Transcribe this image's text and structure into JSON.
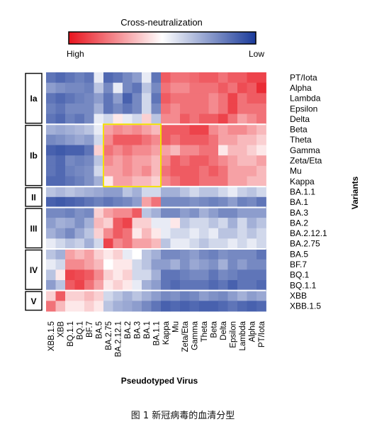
{
  "chart_data": {
    "type": "heatmap",
    "title": "Cross-neutralization",
    "legend": {
      "low_label": "High",
      "high_label": "Low",
      "colors": [
        "#e8141e",
        "#ffffff",
        "#1a3a9a"
      ],
      "scale": "0 = high neutralization (red), 1 = low (blue)"
    },
    "xlabel": "Pseudotyped Virus",
    "ylabel": "Variants",
    "x": [
      "XBB.1.5",
      "XBB",
      "BQ.1.1",
      "BQ.1",
      "BF.7",
      "BA.5",
      "BA.2.75",
      "BA.2.12.1",
      "BA.2",
      "BA.3",
      "BA.1",
      "BA.1.1",
      "Kappa",
      "Mu",
      "Zeta/Eta",
      "Gamma",
      "Theta",
      "Beta",
      "Delta",
      "Epsilon",
      "Lambda",
      "Alpha",
      "PT/Iota"
    ],
    "y": [
      "PT/Iota",
      "Alpha",
      "Lambda",
      "Epsilon",
      "Delta",
      "Beta",
      "Theta",
      "Gamma",
      "Zeta/Eta",
      "Mu",
      "Kappa",
      "BA.1.1",
      "BA.1",
      "BA.3",
      "BA.2",
      "BA.2.12.1",
      "BA.2.75",
      "BA.5",
      "BF.7",
      "BQ.1",
      "BQ.1.1",
      "XBB",
      "XBB.1.5"
    ],
    "groups": [
      {
        "name": "Ia",
        "rows": [
          0,
          4
        ]
      },
      {
        "name": "Ib",
        "rows": [
          5,
          10
        ]
      },
      {
        "name": "II",
        "rows": [
          11,
          12
        ]
      },
      {
        "name": "III",
        "rows": [
          13,
          16
        ]
      },
      {
        "name": "IV",
        "rows": [
          17,
          20
        ]
      },
      {
        "name": "V",
        "rows": [
          21,
          22
        ]
      }
    ],
    "highlight": {
      "rows": [
        5,
        10
      ],
      "cols": [
        6,
        11
      ],
      "color": "#f2e000"
    },
    "values": [
      [
        0.85,
        0.88,
        0.85,
        0.82,
        0.85,
        0.55,
        0.88,
        0.85,
        0.8,
        0.75,
        0.55,
        0.85,
        0.15,
        0.2,
        0.2,
        0.18,
        0.15,
        0.15,
        0.2,
        0.15,
        0.15,
        0.1,
        0.1
      ],
      [
        0.75,
        0.78,
        0.8,
        0.8,
        0.82,
        0.65,
        0.8,
        0.55,
        0.8,
        0.85,
        0.65,
        0.8,
        0.2,
        0.25,
        0.25,
        0.2,
        0.2,
        0.2,
        0.15,
        0.2,
        0.12,
        0.15,
        0.05
      ],
      [
        0.85,
        0.88,
        0.85,
        0.82,
        0.8,
        0.75,
        0.85,
        0.75,
        0.9,
        0.8,
        0.6,
        0.85,
        0.15,
        0.2,
        0.2,
        0.2,
        0.2,
        0.25,
        0.2,
        0.1,
        0.2,
        0.15,
        0.15
      ],
      [
        0.82,
        0.85,
        0.8,
        0.8,
        0.8,
        0.7,
        0.85,
        0.8,
        0.85,
        0.8,
        0.6,
        0.8,
        0.2,
        0.25,
        0.2,
        0.2,
        0.2,
        0.25,
        0.2,
        0.1,
        0.2,
        0.2,
        0.2
      ],
      [
        0.85,
        0.88,
        0.82,
        0.85,
        0.8,
        0.55,
        0.6,
        0.45,
        0.55,
        0.6,
        0.4,
        0.65,
        0.25,
        0.25,
        0.15,
        0.2,
        0.15,
        0.15,
        0.1,
        0.2,
        0.3,
        0.25,
        0.2
      ],
      [
        0.7,
        0.72,
        0.7,
        0.68,
        0.65,
        0.55,
        0.3,
        0.25,
        0.28,
        0.25,
        0.3,
        0.35,
        0.15,
        0.15,
        0.15,
        0.1,
        0.1,
        0.25,
        0.3,
        0.25,
        0.25,
        0.3,
        0.35
      ],
      [
        0.8,
        0.78,
        0.75,
        0.72,
        0.75,
        0.6,
        0.25,
        0.15,
        0.15,
        0.15,
        0.2,
        0.25,
        0.15,
        0.2,
        0.15,
        0.15,
        0.15,
        0.2,
        0.3,
        0.3,
        0.35,
        0.35,
        0.4
      ],
      [
        0.9,
        0.92,
        0.9,
        0.9,
        0.85,
        0.4,
        0.2,
        0.25,
        0.2,
        0.25,
        0.25,
        0.3,
        0.3,
        0.35,
        0.25,
        0.25,
        0.2,
        0.2,
        0.45,
        0.35,
        0.35,
        0.4,
        0.45
      ],
      [
        0.85,
        0.88,
        0.8,
        0.82,
        0.8,
        0.65,
        0.25,
        0.3,
        0.25,
        0.3,
        0.3,
        0.35,
        0.25,
        0.15,
        0.2,
        0.15,
        0.15,
        0.2,
        0.25,
        0.3,
        0.35,
        0.35,
        0.3
      ],
      [
        0.85,
        0.88,
        0.82,
        0.8,
        0.78,
        0.6,
        0.3,
        0.3,
        0.25,
        0.3,
        0.25,
        0.35,
        0.2,
        0.15,
        0.15,
        0.15,
        0.2,
        0.15,
        0.2,
        0.3,
        0.3,
        0.3,
        0.35
      ],
      [
        0.88,
        0.88,
        0.85,
        0.82,
        0.78,
        0.7,
        0.45,
        0.3,
        0.3,
        0.35,
        0.35,
        0.4,
        0.25,
        0.2,
        0.15,
        0.15,
        0.2,
        0.2,
        0.2,
        0.3,
        0.3,
        0.35,
        0.35
      ],
      [
        0.65,
        0.68,
        0.65,
        0.68,
        0.7,
        0.72,
        0.75,
        0.75,
        0.65,
        0.7,
        0.6,
        0.6,
        0.7,
        0.7,
        0.65,
        0.6,
        0.65,
        0.65,
        0.6,
        0.55,
        0.62,
        0.65,
        0.6
      ],
      [
        0.9,
        0.92,
        0.9,
        0.88,
        0.85,
        0.82,
        0.85,
        0.82,
        0.8,
        0.75,
        0.3,
        0.2,
        0.8,
        0.8,
        0.8,
        0.78,
        0.8,
        0.82,
        0.8,
        0.75,
        0.82,
        0.8,
        0.85
      ],
      [
        0.8,
        0.8,
        0.82,
        0.78,
        0.8,
        0.4,
        0.3,
        0.25,
        0.25,
        0.15,
        0.65,
        0.7,
        0.8,
        0.8,
        0.75,
        0.78,
        0.7,
        0.75,
        0.8,
        0.8,
        0.75,
        0.75,
        0.75
      ],
      [
        0.75,
        0.7,
        0.72,
        0.78,
        0.7,
        0.35,
        0.4,
        0.15,
        0.1,
        0.4,
        0.4,
        0.55,
        0.55,
        0.45,
        0.65,
        0.6,
        0.6,
        0.65,
        0.6,
        0.7,
        0.6,
        0.7,
        0.65
      ],
      [
        0.7,
        0.75,
        0.8,
        0.72,
        0.65,
        0.4,
        0.25,
        0.15,
        0.2,
        0.45,
        0.35,
        0.45,
        0.55,
        0.6,
        0.6,
        0.55,
        0.6,
        0.55,
        0.65,
        0.65,
        0.6,
        0.65,
        0.6
      ],
      [
        0.55,
        0.6,
        0.65,
        0.62,
        0.7,
        0.6,
        0.1,
        0.25,
        0.2,
        0.3,
        0.3,
        0.35,
        0.65,
        0.55,
        0.55,
        0.6,
        0.65,
        0.6,
        0.6,
        0.55,
        0.6,
        0.55,
        0.6
      ],
      [
        0.65,
        0.7,
        0.3,
        0.35,
        0.3,
        0.4,
        0.45,
        0.4,
        0.55,
        0.5,
        0.65,
        0.7,
        0.8,
        0.8,
        0.78,
        0.75,
        0.8,
        0.82,
        0.78,
        0.8,
        0.8,
        0.8,
        0.85
      ],
      [
        0.55,
        0.6,
        0.25,
        0.25,
        0.3,
        0.35,
        0.5,
        0.45,
        0.45,
        0.6,
        0.65,
        0.75,
        0.75,
        0.7,
        0.78,
        0.72,
        0.75,
        0.78,
        0.7,
        0.8,
        0.75,
        0.8,
        0.8
      ],
      [
        0.65,
        0.45,
        0.1,
        0.12,
        0.15,
        0.25,
        0.4,
        0.45,
        0.4,
        0.6,
        0.6,
        0.7,
        0.85,
        0.85,
        0.82,
        0.8,
        0.8,
        0.85,
        0.8,
        0.82,
        0.85,
        0.85,
        0.85
      ],
      [
        0.75,
        0.65,
        0.15,
        0.1,
        0.2,
        0.3,
        0.45,
        0.4,
        0.45,
        0.55,
        0.7,
        0.75,
        0.85,
        0.88,
        0.85,
        0.85,
        0.85,
        0.88,
        0.85,
        0.9,
        0.85,
        0.85,
        0.88
      ],
      [
        0.4,
        0.15,
        0.4,
        0.4,
        0.35,
        0.4,
        0.6,
        0.65,
        0.7,
        0.65,
        0.7,
        0.75,
        0.8,
        0.78,
        0.82,
        0.8,
        0.75,
        0.78,
        0.8,
        0.75,
        0.7,
        0.75,
        0.72
      ],
      [
        0.2,
        0.35,
        0.45,
        0.45,
        0.4,
        0.45,
        0.65,
        0.7,
        0.72,
        0.75,
        0.8,
        0.85,
        0.9,
        0.88,
        0.9,
        0.88,
        0.9,
        0.9,
        0.88,
        0.85,
        0.88,
        0.9,
        0.88
      ]
    ]
  },
  "caption": "图 1 新冠病毒的血清分型"
}
